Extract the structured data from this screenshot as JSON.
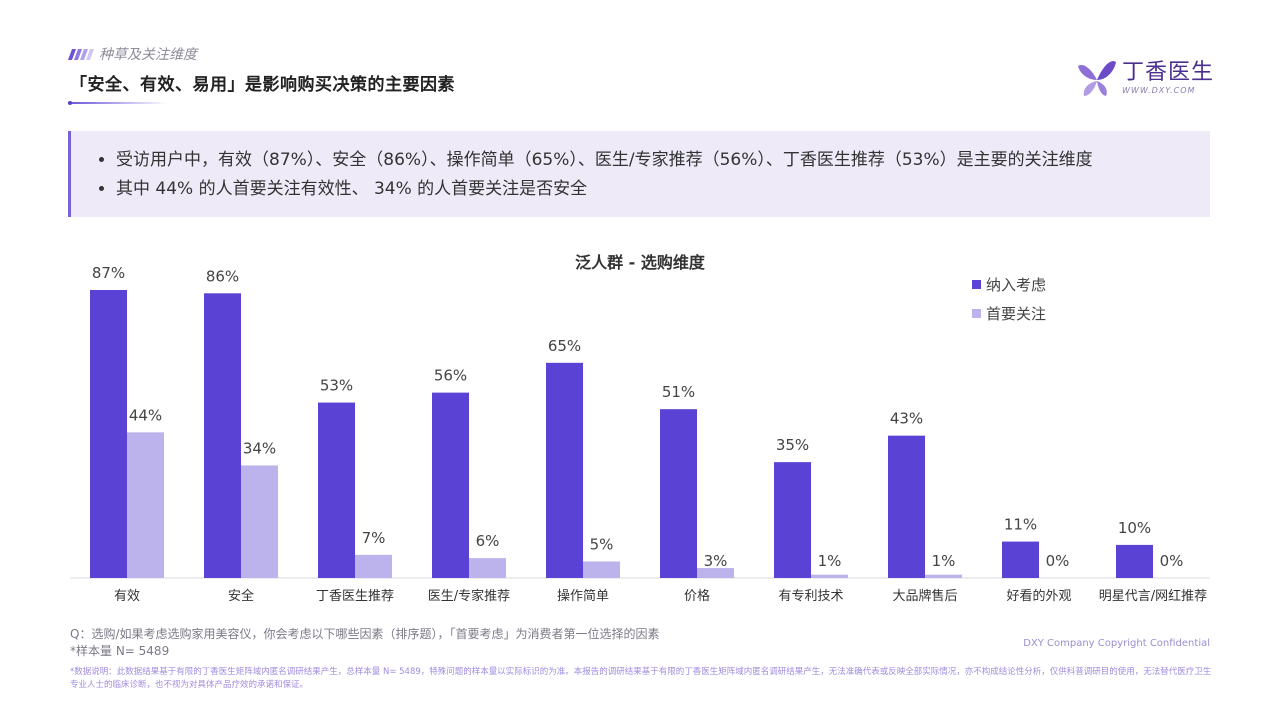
{
  "header": {
    "section_label": "种草及关注维度",
    "title": "「安全、有效、易用」是影响购买决策的主要因素"
  },
  "logo": {
    "name": "丁香医生",
    "url": "WWW.DXY.COM"
  },
  "summary": {
    "bullets": [
      "受访用户中，有效（87%）、安全（86%）、操作简单（65%）、医生/专家推荐（56%）、丁香医生推荐（53%）是主要的关注维度",
      "其中 44% 的人首要关注有效性、 34% 的人首要关注是否安全"
    ]
  },
  "colors": {
    "primary_bar": "#5a42d4",
    "secondary_bar": "#bdb3ec",
    "accent": "#7a62d6"
  },
  "chart_data": {
    "type": "bar",
    "title": "泛人群 - 选购维度",
    "categories": [
      "有效",
      "安全",
      "丁香医生推荐",
      "医生/专家推荐",
      "操作简单",
      "价格",
      "有专利技术",
      "大品牌售后",
      "好看的外观",
      "明星代言/网红推荐"
    ],
    "series": [
      {
        "name": "纳入考虑",
        "values": [
          87,
          86,
          53,
          56,
          65,
          51,
          35,
          43,
          11,
          10
        ],
        "labels": [
          "87%",
          "86%",
          "53%",
          "56%",
          "65%",
          "51%",
          "35%",
          "43%",
          "11%",
          "10%"
        ]
      },
      {
        "name": "首要关注",
        "values": [
          44,
          34,
          7,
          6,
          5,
          3,
          1,
          1,
          0,
          0
        ],
        "labels": [
          "44%",
          "34%",
          "7%",
          "6%",
          "5%",
          "3%",
          "1%",
          "1%",
          "0%",
          "0%"
        ]
      }
    ],
    "ylim": [
      0,
      87
    ],
    "legend_position": "top-right",
    "grid": false
  },
  "footer": {
    "question": "Q：选购/如果考虑选购家用美容仪，你会考虑以下哪些因素（排序题），「首要考虑」为消费者第一位选择的因素",
    "sample": "*样本量 N= 5489",
    "copyright": "DXY Company Copyright Confidential",
    "disclaimer": "*数据说明：此数据结果基于有限的丁香医生矩阵域内匿名调研结果产生，总样本量 N= 5489，特殊问题的样本量以实际标识的为准。本报告的调研结果基于有限的丁香医生矩阵域内匿名调研结果产生，无法准确代表或反映全部实际情况，亦不构成结论性分析，仅供科普调研目的使用，无法替代医疗卫生专业人士的临床诊断，也不视为对具体产品疗效的承诺和保证。"
  }
}
